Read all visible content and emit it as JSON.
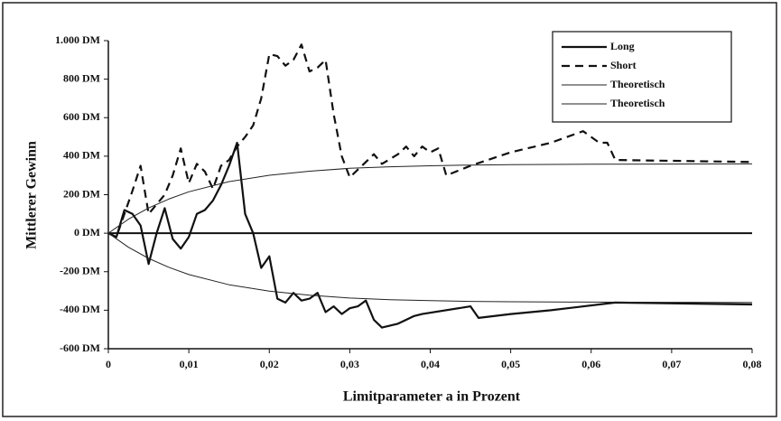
{
  "chart_data": {
    "type": "line",
    "xlabel": "Limitparameter a in Prozent",
    "ylabel": "Mittlerer Gewinn",
    "xlim": [
      0,
      0.08
    ],
    "ylim": [
      -600,
      1000
    ],
    "xticks": [
      0,
      {
        "value": 0.01,
        "label": "0,01"
      },
      {
        "value": 0.02,
        "label": "0,02"
      },
      {
        "value": 0.03,
        "label": "0,03"
      },
      {
        "value": 0.04,
        "label": "0,04"
      },
      {
        "value": 0.05,
        "label": "0,05"
      },
      {
        "value": 0.06,
        "label": "0,06"
      },
      {
        "value": 0.07,
        "label": "0,07"
      },
      {
        "value": 0.08,
        "label": "0,08"
      }
    ],
    "yticks": [
      {
        "value": -600,
        "label": "-600 DM"
      },
      {
        "value": -400,
        "label": "-400 DM"
      },
      {
        "value": -200,
        "label": "-200 DM"
      },
      {
        "value": 0,
        "label": "0 DM"
      },
      {
        "value": 200,
        "label": "200 DM"
      },
      {
        "value": 400,
        "label": "400 DM"
      },
      {
        "value": 600,
        "label": "600 DM"
      },
      {
        "value": 800,
        "label": "800 DM"
      },
      {
        "value": 1000,
        "label": "1.000 DM"
      }
    ],
    "legend": "upper right",
    "series": [
      {
        "name": "Long",
        "color": "#111111",
        "width": 2.2,
        "dash": false,
        "x": [
          0,
          0.001,
          0.002,
          0.003,
          0.004,
          0.005,
          0.006,
          0.007,
          0.008,
          0.009,
          0.01,
          0.011,
          0.012,
          0.013,
          0.014,
          0.015,
          0.016,
          0.017,
          0.018,
          0.019,
          0.02,
          0.021,
          0.022,
          0.023,
          0.024,
          0.025,
          0.026,
          0.027,
          0.028,
          0.029,
          0.03,
          0.031,
          0.032,
          0.033,
          0.034,
          0.036,
          0.037,
          0.038,
          0.039,
          0.045,
          0.046,
          0.05,
          0.055,
          0.063,
          0.08
        ],
        "values": [
          0,
          -20,
          120,
          100,
          40,
          -160,
          0,
          130,
          -30,
          -80,
          -20,
          100,
          120,
          170,
          250,
          350,
          470,
          100,
          0,
          -180,
          -120,
          -340,
          -360,
          -310,
          -350,
          -340,
          -310,
          -410,
          -380,
          -420,
          -390,
          -380,
          -350,
          -450,
          -490,
          -470,
          -450,
          -430,
          -420,
          -380,
          -440,
          -420,
          -400,
          -360,
          -370
        ]
      },
      {
        "name": "Short",
        "color": "#111111",
        "width": 2.2,
        "dash": true,
        "x": [
          0,
          0.001,
          0.002,
          0.003,
          0.004,
          0.005,
          0.006,
          0.007,
          0.008,
          0.009,
          0.01,
          0.011,
          0.012,
          0.013,
          0.014,
          0.015,
          0.016,
          0.017,
          0.018,
          0.019,
          0.02,
          0.021,
          0.022,
          0.023,
          0.024,
          0.025,
          0.026,
          0.027,
          0.028,
          0.029,
          0.03,
          0.032,
          0.033,
          0.034,
          0.036,
          0.037,
          0.038,
          0.039,
          0.04,
          0.041,
          0.042,
          0.045,
          0.05,
          0.055,
          0.059,
          0.061,
          0.062,
          0.063,
          0.08
        ],
        "values": [
          0,
          -20,
          100,
          220,
          350,
          100,
          150,
          200,
          300,
          440,
          260,
          360,
          320,
          230,
          350,
          380,
          450,
          500,
          560,
          700,
          930,
          920,
          870,
          900,
          980,
          840,
          860,
          900,
          620,
          400,
          290,
          370,
          410,
          360,
          410,
          450,
          400,
          450,
          420,
          440,
          300,
          350,
          420,
          470,
          530,
          470,
          470,
          380,
          370
        ]
      },
      {
        "name": "Theoretisch",
        "color": "#222222",
        "width": 1,
        "dash": false,
        "x": [
          0,
          0.0025,
          0.005,
          0.0075,
          0.01,
          0.015,
          0.02,
          0.025,
          0.03,
          0.035,
          0.04,
          0.045,
          0.05,
          0.06,
          0.07,
          0.08
        ],
        "values": [
          0,
          73,
          131,
          177,
          215,
          268,
          301,
          322,
          337,
          345,
          350,
          354,
          356,
          358,
          359,
          360
        ]
      },
      {
        "name": "Theoretisch",
        "color": "#222222",
        "width": 1,
        "dash": false,
        "x": [
          0,
          0.0025,
          0.005,
          0.0075,
          0.01,
          0.015,
          0.02,
          0.025,
          0.03,
          0.035,
          0.04,
          0.045,
          0.05,
          0.06,
          0.07,
          0.08
        ],
        "values": [
          0,
          -73,
          -131,
          -177,
          -215,
          -268,
          -301,
          -322,
          -337,
          -345,
          -350,
          -354,
          -356,
          -358,
          -359,
          -360
        ]
      }
    ]
  }
}
